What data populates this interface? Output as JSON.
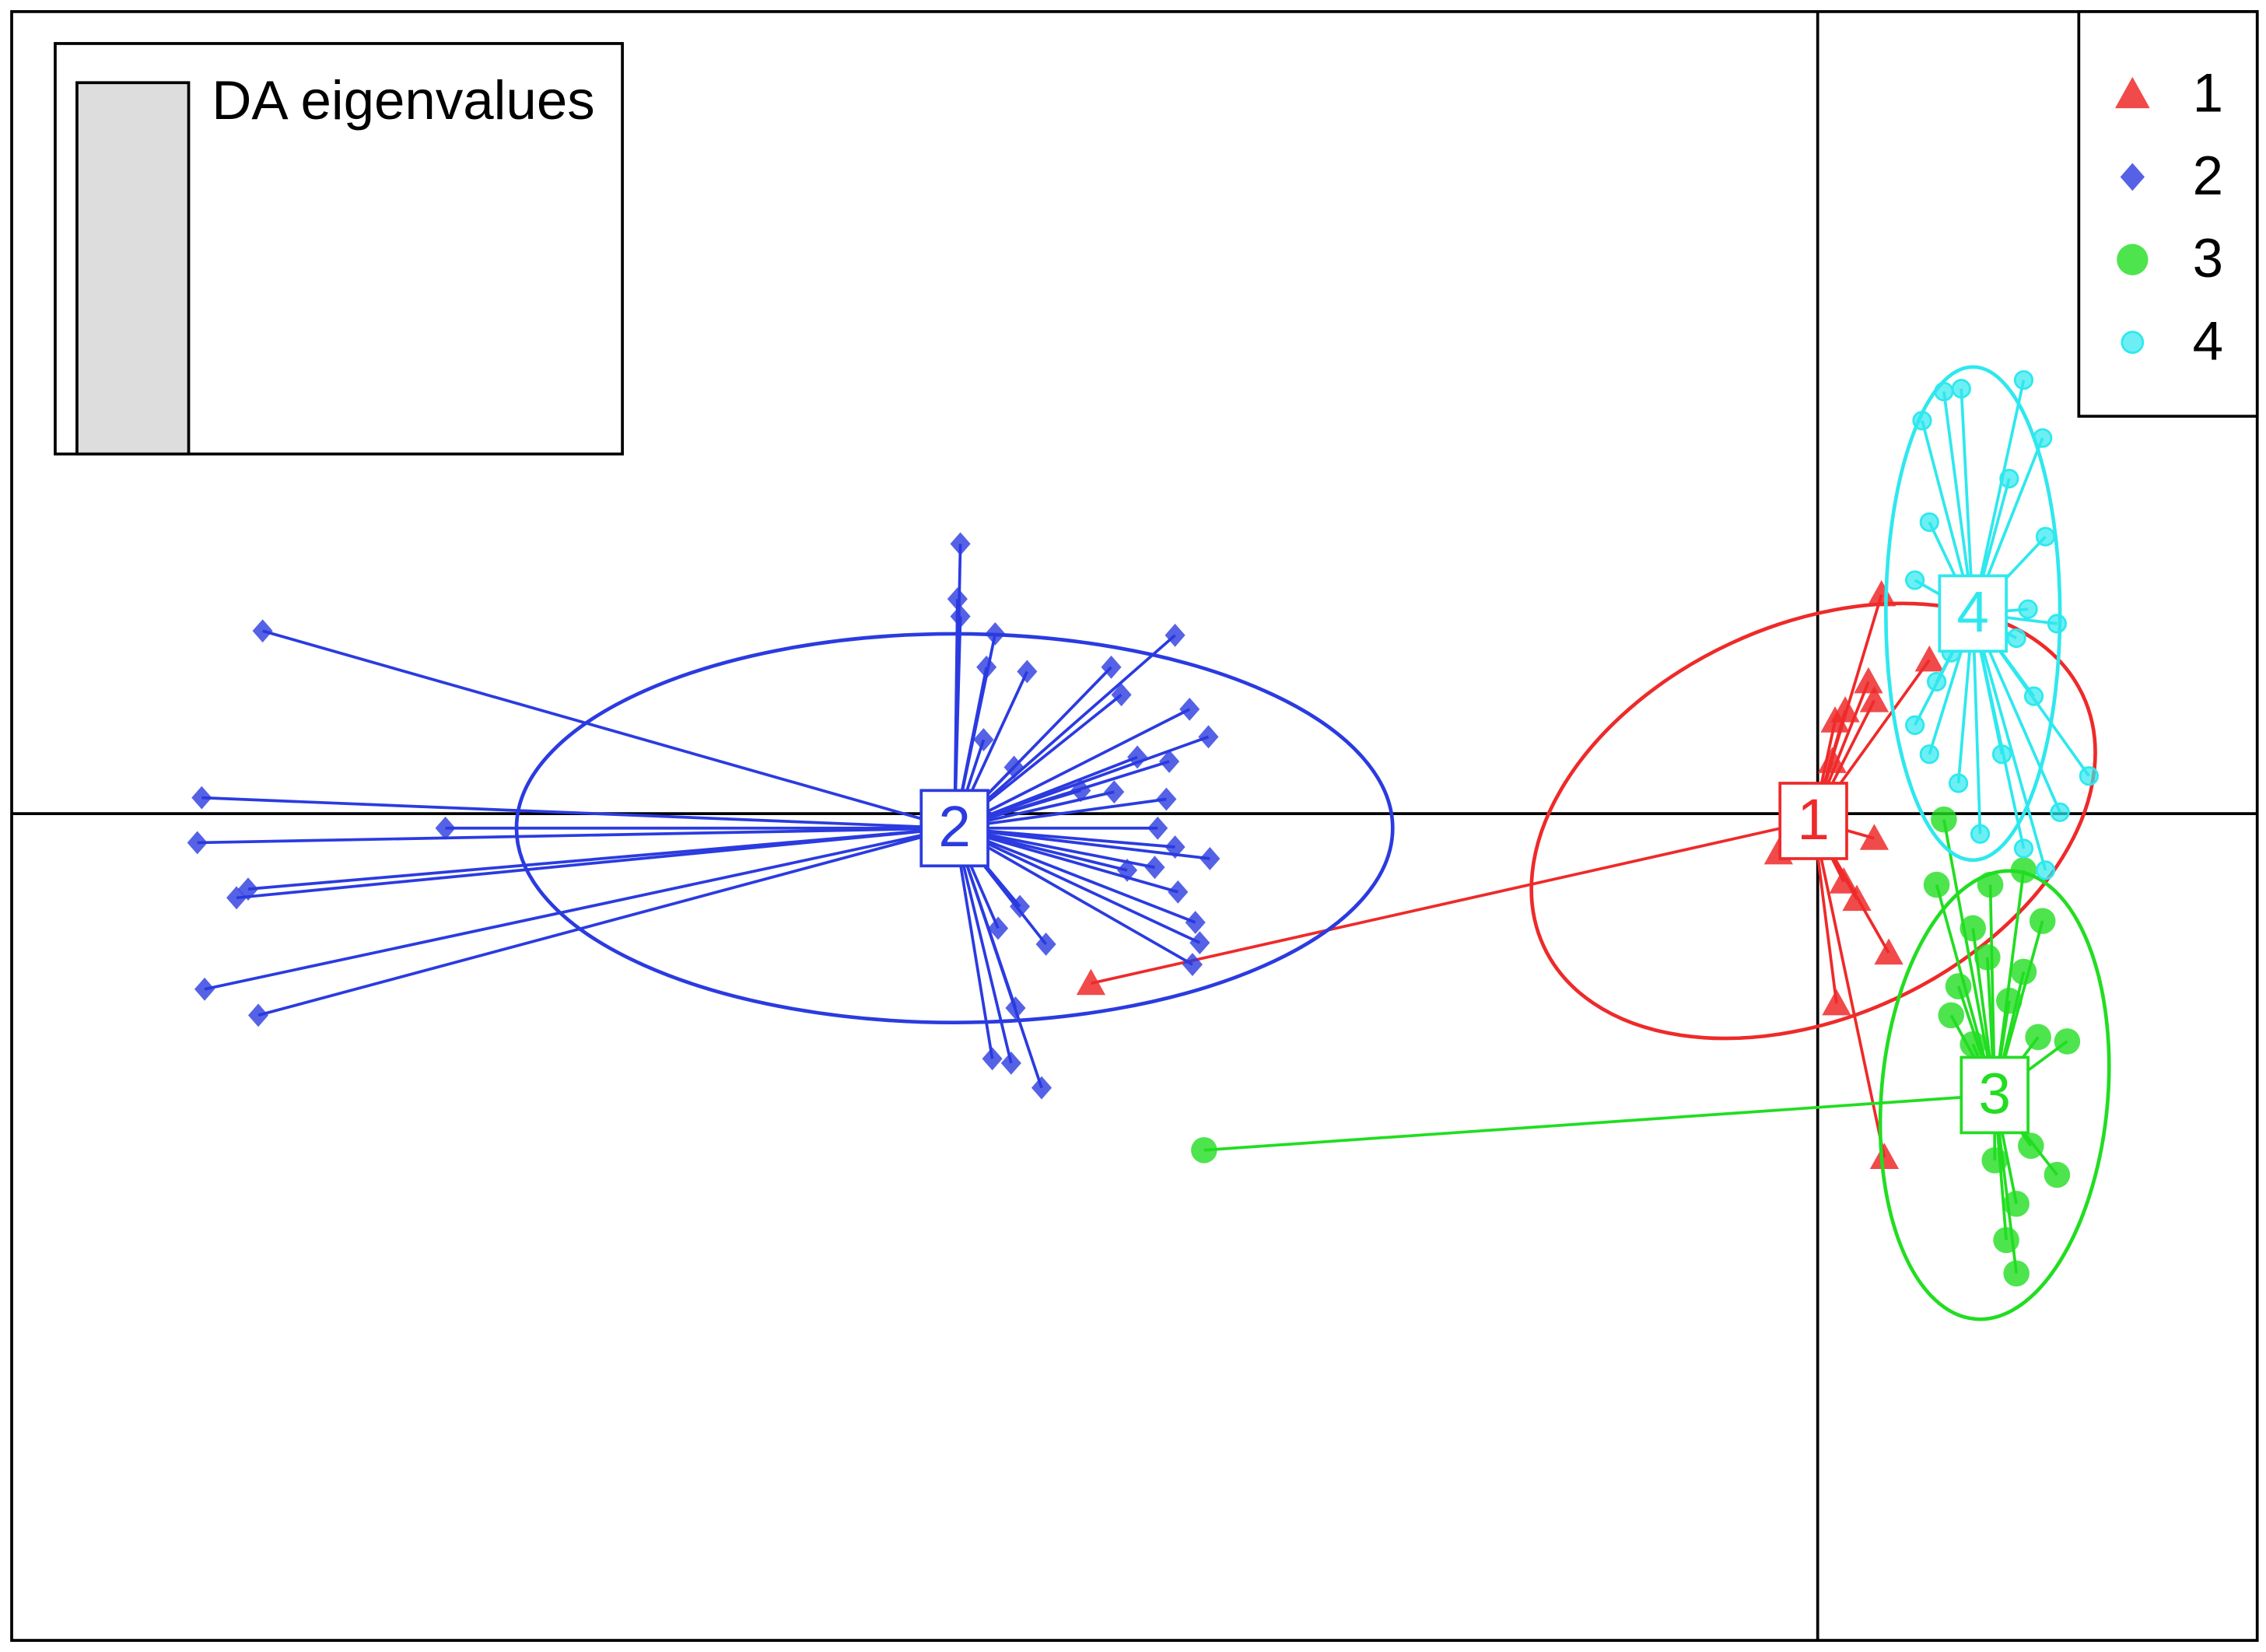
{
  "chart_data": {
    "type": "scatter",
    "xlim": [
      -1245,
      303
    ],
    "ylim": [
      -570,
      553
    ],
    "axes_at_zero": true,
    "legend": "top-right",
    "series": [
      {
        "name": "1",
        "color": "#ee2a2a",
        "marker": "triangle",
        "x": [
          -501,
          44,
          35,
          39,
          12,
          10,
          39,
          -27,
          18,
          27,
          49,
          13,
          46,
          77,
          19
        ],
        "y": [
          -117,
          151,
          91,
          78,
          64,
          36,
          -17,
          -27,
          -47,
          -59,
          -96,
          -131,
          -237,
          106,
          71
        ],
        "centroid": [
          -3,
          -5
        ],
        "ellipse": {
          "rx": 205,
          "ry": 135,
          "angle": 25
        }
      },
      {
        "name": "2",
        "color": "#2b3be0",
        "marker": "diamond",
        "x": [
          -1072,
          -1114,
          -1117,
          -1090,
          -1082,
          -1112,
          -1075,
          -946,
          -591,
          -593,
          -591,
          -567,
          -545,
          -487,
          -480,
          -443,
          -433,
          -420,
          -469,
          -447,
          -485,
          -449,
          -455,
          -443,
          -419,
          -476,
          -457,
          -441,
          -429,
          -426,
          -431,
          -550,
          -532,
          -565,
          -553,
          -569,
          -556,
          -535,
          -573,
          -575,
          -554,
          -508
        ],
        "y": [
          126,
          11,
          -20,
          -58,
          -52,
          -121,
          -139,
          -10,
          186,
          148,
          136,
          124,
          98,
          101,
          82,
          123,
          72,
          53,
          39,
          36,
          15,
          10,
          -10,
          -23,
          -31,
          -39,
          -37,
          -54,
          -75,
          -89,
          -104,
          -64,
          -90,
          -79,
          -134,
          -169,
          -172,
          -189,
          101,
          51,
          32,
          16
        ],
        "centroid": [
          -595,
          -10
        ],
        "ellipse": {
          "rx": 302,
          "ry": 134,
          "angle": 0
        }
      },
      {
        "name": "3",
        "color": "#22dd22",
        "marker": "circle",
        "x": [
          -423,
          87,
          119,
          82,
          107,
          155,
          142,
          97,
          132,
          92,
          172,
          152,
          117,
          147,
          165,
          137,
          130,
          137,
          122,
          107,
          127,
          142
        ],
        "y": [
          -232,
          -4,
          -49,
          -49,
          -79,
          -74,
          -39,
          -119,
          -129,
          -139,
          -157,
          -154,
          -99,
          -229,
          -249,
          -269,
          -294,
          -317,
          -239,
          -159,
          -179,
          -109
        ],
        "centroid": [
          122,
          -194
        ],
        "ellipse": {
          "rx": 78,
          "ry": 155,
          "angle": -5
        }
      },
      {
        "name": "4",
        "color": "#2ee8ee",
        "marker": "small-circle",
        "x": [
          142,
          87,
          99,
          155,
          72,
          132,
          77,
          157,
          67,
          145,
          165,
          82,
          149,
          67,
          187,
          127,
          97,
          167,
          112,
          142,
          157,
          92,
          137,
          77
        ],
        "y": [
          299,
          291,
          293,
          259,
          271,
          231,
          201,
          191,
          161,
          141,
          131,
          91,
          81,
          61,
          26,
          41,
          21,
          1,
          -14,
          -24,
          -39,
          111,
          121,
          41
        ],
        "centroid": [
          107,
          138
        ],
        "ellipse": {
          "rx": 60,
          "ry": 170,
          "angle": 0
        }
      }
    ],
    "inset": {
      "title": "DA eigenvalues",
      "values": [
        1
      ],
      "ylim": [
        0,
        1
      ]
    }
  }
}
